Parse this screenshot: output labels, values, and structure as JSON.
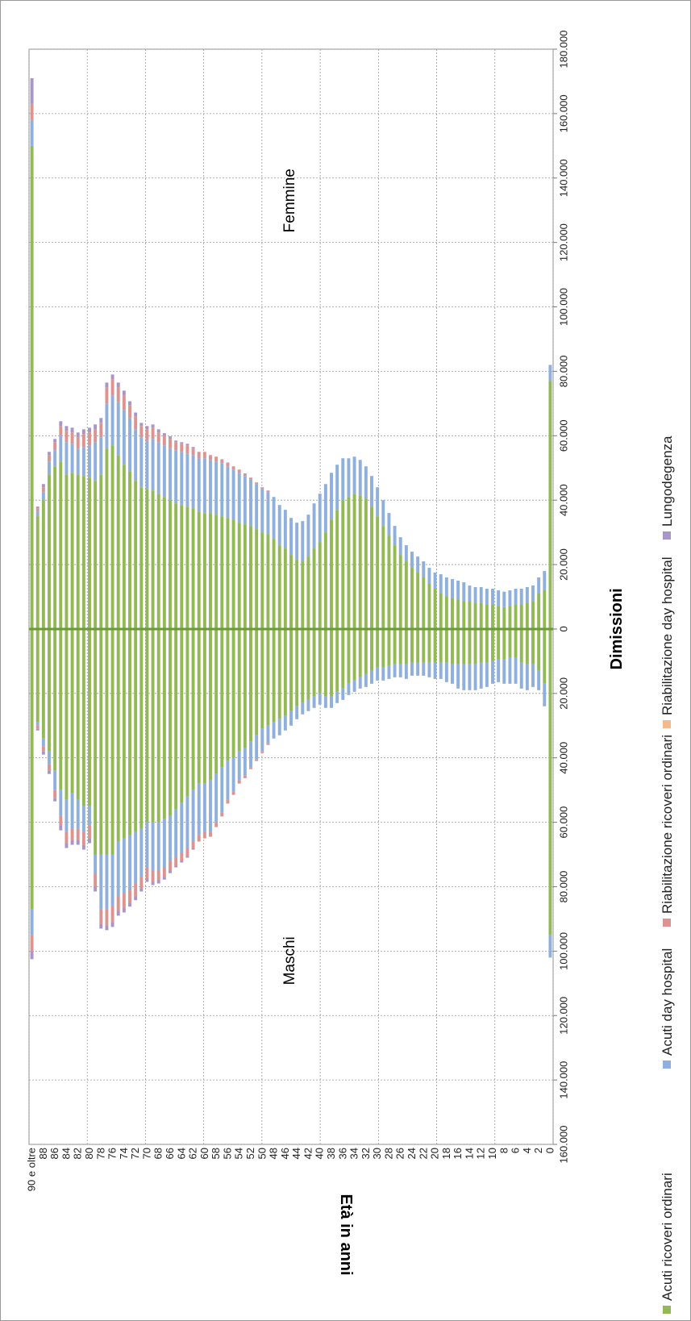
{
  "chart_data": {
    "type": "bar",
    "orientation": "population-pyramid, rotated 90 degrees",
    "title": "",
    "xlabel": "Dimissioni",
    "ylabel": "Età in anni",
    "xlim": [
      -160000,
      180000
    ],
    "x_ticks": [
      -160000,
      -140000,
      -120000,
      -100000,
      -80000,
      -60000,
      -40000,
      -20000,
      0,
      20000,
      40000,
      60000,
      80000,
      100000,
      120000,
      140000,
      160000,
      180000
    ],
    "x_tick_labels": [
      "160.000",
      "140.000",
      "120.000",
      "100.000",
      "80.000",
      "60.000",
      "40.000",
      "20.000",
      "0",
      "20.000",
      "40.000",
      "60.000",
      "80.000",
      "100.000",
      "120.000",
      "140.000",
      "160.000",
      "180.000"
    ],
    "age_tick_labels": [
      "0",
      "2",
      "4",
      "6",
      "8",
      "10",
      "12",
      "14",
      "16",
      "18",
      "20",
      "22",
      "24",
      "26",
      "28",
      "30",
      "32",
      "34",
      "36",
      "38",
      "40",
      "42",
      "44",
      "46",
      "48",
      "50",
      "52",
      "54",
      "56",
      "58",
      "60",
      "62",
      "64",
      "66",
      "68",
      "70",
      "72",
      "74",
      "76",
      "78",
      "80",
      "82",
      "84",
      "86",
      "88",
      "90 e oltre"
    ],
    "grid": true,
    "legend_position": "bottom",
    "annotations": {
      "male": "Maschi",
      "female": "Femmine"
    },
    "ages": [
      0,
      1,
      2,
      3,
      4,
      5,
      6,
      7,
      8,
      9,
      10,
      11,
      12,
      13,
      14,
      15,
      16,
      17,
      18,
      19,
      20,
      21,
      22,
      23,
      24,
      25,
      26,
      27,
      28,
      29,
      30,
      31,
      32,
      33,
      34,
      35,
      36,
      37,
      38,
      39,
      40,
      41,
      42,
      43,
      44,
      45,
      46,
      47,
      48,
      49,
      50,
      51,
      52,
      53,
      54,
      55,
      56,
      57,
      58,
      59,
      60,
      61,
      62,
      63,
      64,
      65,
      66,
      67,
      68,
      69,
      70,
      71,
      72,
      73,
      74,
      75,
      76,
      77,
      78,
      79,
      80,
      81,
      82,
      83,
      84,
      85,
      86,
      87,
      88,
      89,
      90
    ],
    "series": [
      {
        "name": "Acuti ricoveri ordinari",
        "color": "#93b956",
        "male": [
          95000,
          17000,
          13000,
          11000,
          11000,
          10500,
          9000,
          9000,
          9500,
          9500,
          10000,
          10500,
          10500,
          11000,
          11000,
          11000,
          11000,
          11000,
          10500,
          10500,
          10500,
          10500,
          10500,
          10500,
          10500,
          11000,
          11000,
          11000,
          11500,
          12000,
          12000,
          13000,
          14000,
          15000,
          16000,
          17000,
          18500,
          19500,
          21000,
          21000,
          20000,
          21000,
          22000,
          23000,
          24000,
          25500,
          27000,
          28000,
          29000,
          30000,
          31000,
          33000,
          35000,
          37000,
          38000,
          40000,
          41000,
          43000,
          45000,
          47000,
          48000,
          48000,
          50000,
          52000,
          54000,
          56000,
          58000,
          59000,
          60000,
          60000,
          60000,
          62000,
          63000,
          64000,
          65000,
          66000,
          70000,
          70000,
          70000,
          70000,
          55000,
          55000,
          53000,
          51000,
          53000,
          50000,
          44000,
          38000,
          34000,
          29000,
          87000
        ],
        "female": [
          77000,
          12000,
          11000,
          8500,
          8000,
          7500,
          7500,
          7000,
          6800,
          7200,
          7500,
          7500,
          8000,
          8000,
          8500,
          8500,
          9000,
          9500,
          10000,
          11000,
          12500,
          14000,
          16000,
          17500,
          19000,
          21000,
          23000,
          26000,
          29000,
          32000,
          35000,
          38000,
          40500,
          41500,
          42000,
          41000,
          40000,
          37000,
          34000,
          30000,
          27000,
          25000,
          22500,
          21000,
          21500,
          23000,
          25000,
          26000,
          28000,
          29500,
          30000,
          31000,
          32000,
          32500,
          33000,
          34000,
          34500,
          35000,
          35500,
          36000,
          36000,
          36500,
          37500,
          38000,
          38500,
          39000,
          40000,
          41000,
          42000,
          43000,
          43500,
          44000,
          46000,
          49000,
          51000,
          54000,
          57000,
          56000,
          48000,
          46000,
          47000,
          47500,
          48000,
          48500,
          48000,
          52000,
          50500,
          48000,
          40000,
          35000,
          150000
        ]
      },
      {
        "name": "Acuti day hospital",
        "color": "#8fafdc",
        "male": [
          7000,
          7000,
          6000,
          7000,
          8000,
          8000,
          8000,
          8000,
          7500,
          7000,
          7000,
          7500,
          8000,
          8000,
          8000,
          8000,
          7500,
          6000,
          6000,
          5000,
          5000,
          4500,
          4000,
          4000,
          4000,
          4500,
          4000,
          4000,
          4000,
          4000,
          4000,
          4000,
          4000,
          3500,
          3500,
          3500,
          3500,
          3500,
          3500,
          3500,
          3500,
          3500,
          3500,
          3500,
          4000,
          4500,
          4500,
          5000,
          5000,
          5500,
          7000,
          7500,
          8000,
          8500,
          9000,
          10500,
          12000,
          14000,
          15000,
          16000,
          15000,
          16000,
          16000,
          16000,
          15500,
          15000,
          14000,
          15000,
          15000,
          15000,
          14000,
          15000,
          16000,
          17000,
          17000,
          17000,
          16000,
          17000,
          17000,
          6000,
          6000,
          8000,
          9000,
          11000,
          10000,
          8000,
          6000,
          4000,
          2500,
          1000,
          8000
        ],
        "female": [
          5000,
          6000,
          5000,
          5000,
          5000,
          5000,
          5000,
          5000,
          4800,
          4800,
          5000,
          5000,
          5000,
          5000,
          5000,
          6000,
          6000,
          6000,
          6000,
          6000,
          5000,
          5000,
          5000,
          5000,
          5000,
          5000,
          5500,
          6000,
          7000,
          8000,
          9000,
          9500,
          10000,
          11000,
          11500,
          12000,
          13000,
          14000,
          14500,
          15000,
          15000,
          14000,
          13000,
          12500,
          11500,
          11500,
          12000,
          12500,
          13000,
          13000,
          13500,
          14000,
          14500,
          15000,
          15500,
          15500,
          16000,
          16500,
          16500,
          16500,
          17000,
          16500,
          16500,
          16500,
          16500,
          16500,
          16000,
          16000,
          16000,
          16000,
          15000,
          15500,
          16000,
          16500,
          17000,
          16500,
          15500,
          14000,
          11500,
          12000,
          10000,
          9000,
          8000,
          9000,
          10000,
          8000,
          5000,
          4000,
          2500,
          1500,
          8000
        ]
      },
      {
        "name": "Riabilitazione ricoveri ordinari",
        "color": "#dd9490",
        "male": [
          0,
          0,
          0,
          0,
          0,
          0,
          0,
          0,
          0,
          0,
          0,
          0,
          0,
          0,
          0,
          0,
          0,
          0,
          0,
          0,
          0,
          0,
          0,
          0,
          0,
          0,
          0,
          0,
          0,
          0,
          0,
          0,
          0,
          0,
          0,
          0,
          0,
          0,
          0,
          0,
          0,
          0,
          0,
          0,
          0,
          0,
          0,
          0,
          0,
          500,
          500,
          500,
          500,
          800,
          1000,
          1000,
          1200,
          1200,
          1500,
          1500,
          2000,
          2000,
          2000,
          2500,
          2500,
          2500,
          3000,
          3000,
          3000,
          3500,
          3500,
          3500,
          4000,
          4000,
          4500,
          4500,
          5000,
          5000,
          4500,
          4000,
          4000,
          4000,
          3500,
          3500,
          3500,
          3000,
          2500,
          2000,
          1500,
          1000,
          5000
        ],
        "female": [
          0,
          0,
          0,
          0,
          0,
          0,
          0,
          0,
          0,
          0,
          0,
          0,
          0,
          0,
          0,
          0,
          0,
          0,
          0,
          0,
          0,
          0,
          0,
          0,
          0,
          0,
          0,
          0,
          0,
          0,
          0,
          0,
          0,
          0,
          0,
          0,
          0,
          0,
          0,
          0,
          0,
          0,
          0,
          0,
          0,
          0,
          0,
          0,
          0,
          500,
          500,
          500,
          500,
          800,
          1000,
          1000,
          1200,
          1200,
          1500,
          1500,
          2000,
          2000,
          2000,
          2500,
          2500,
          2500,
          3000,
          3000,
          3000,
          3500,
          3500,
          3500,
          4000,
          4000,
          4500,
          4500,
          5000,
          5000,
          4500,
          4000,
          4000,
          4000,
          3500,
          3500,
          3500,
          3000,
          2500,
          2000,
          1500,
          1000,
          5000
        ]
      },
      {
        "name": "Riabilitazione day hospital",
        "color": "#f5b98a",
        "male": [
          0,
          0,
          0,
          0,
          0,
          0,
          0,
          0,
          0,
          0,
          0,
          0,
          0,
          0,
          0,
          0,
          0,
          0,
          0,
          0,
          0,
          0,
          0,
          0,
          0,
          0,
          0,
          0,
          0,
          0,
          0,
          0,
          0,
          0,
          0,
          0,
          0,
          0,
          0,
          0,
          0,
          0,
          0,
          0,
          0,
          0,
          0,
          0,
          0,
          0,
          0,
          0,
          0,
          0,
          0,
          0,
          0,
          0,
          0,
          0,
          0,
          0,
          0,
          0,
          0,
          0,
          0,
          0,
          0,
          0,
          0,
          0,
          0,
          0,
          0,
          0,
          0,
          0,
          0,
          0,
          0,
          0,
          0,
          0,
          0,
          0,
          0,
          0,
          0,
          0,
          0
        ],
        "female": [
          0,
          0,
          0,
          0,
          0,
          0,
          0,
          0,
          0,
          0,
          0,
          0,
          0,
          0,
          0,
          0,
          0,
          0,
          0,
          0,
          0,
          0,
          0,
          0,
          0,
          0,
          0,
          0,
          0,
          0,
          0,
          0,
          0,
          0,
          0,
          0,
          0,
          0,
          0,
          0,
          0,
          0,
          0,
          0,
          0,
          0,
          0,
          0,
          0,
          0,
          0,
          0,
          0,
          0,
          0,
          0,
          0,
          0,
          0,
          0,
          0,
          0,
          0,
          0,
          0,
          0,
          0,
          0,
          0,
          0,
          0,
          0,
          0,
          0,
          0,
          0,
          0,
          0,
          0,
          0,
          0,
          0,
          0,
          0,
          0,
          0,
          0,
          0,
          0,
          0,
          0
        ]
      },
      {
        "name": "Lungodegenza",
        "color": "#a896c8",
        "male": [
          0,
          0,
          0,
          0,
          0,
          0,
          0,
          0,
          0,
          0,
          0,
          0,
          0,
          0,
          0,
          0,
          0,
          0,
          0,
          0,
          0,
          0,
          0,
          0,
          0,
          0,
          0,
          0,
          0,
          0,
          0,
          0,
          0,
          0,
          0,
          0,
          0,
          0,
          0,
          0,
          0,
          0,
          0,
          0,
          0,
          0,
          0,
          0,
          0,
          0,
          0,
          0,
          0,
          0,
          0,
          0,
          0,
          0,
          0,
          0,
          0,
          0,
          500,
          500,
          500,
          500,
          800,
          800,
          1000,
          1000,
          1000,
          1000,
          1200,
          1200,
          1500,
          1500,
          1500,
          1500,
          1500,
          1500,
          1500,
          1500,
          1500,
          1500,
          1500,
          1500,
          1000,
          1000,
          1000,
          500,
          2500
        ],
        "female": [
          0,
          0,
          0,
          0,
          0,
          0,
          0,
          0,
          0,
          0,
          0,
          0,
          0,
          0,
          0,
          0,
          0,
          0,
          0,
          0,
          0,
          0,
          0,
          0,
          0,
          0,
          0,
          0,
          0,
          0,
          0,
          0,
          0,
          0,
          0,
          0,
          0,
          0,
          0,
          0,
          0,
          0,
          0,
          0,
          0,
          0,
          0,
          0,
          0,
          0,
          0,
          0,
          0,
          0,
          0,
          0,
          0,
          0,
          0,
          0,
          0,
          0,
          500,
          500,
          500,
          500,
          800,
          800,
          1000,
          1000,
          1000,
          1000,
          1200,
          1200,
          1500,
          1500,
          1500,
          1500,
          1500,
          1500,
          1500,
          1500,
          1500,
          1500,
          1500,
          1500,
          1000,
          1000,
          1000,
          500,
          8000
        ]
      }
    ]
  }
}
